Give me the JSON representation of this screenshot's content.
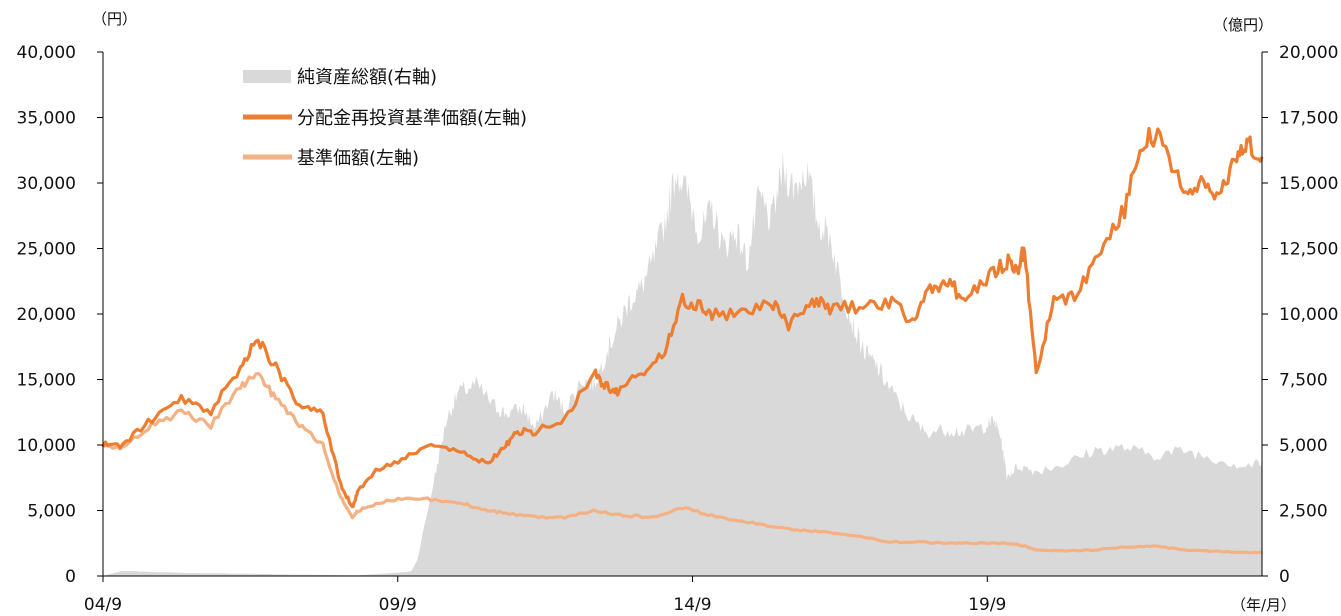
{
  "chart_data": {
    "type": "line",
    "y_left_unit": "（円）",
    "y_right_unit": "（億円）",
    "x_unit": "（年/月）",
    "x_tick_labels": [
      "04/9",
      "09/9",
      "14/9",
      "19/9"
    ],
    "y_left_ticks": [
      "0",
      "5,000",
      "10,000",
      "15,000",
      "20,000",
      "25,000",
      "30,000",
      "35,000",
      "40,000"
    ],
    "y_right_ticks": [
      "0",
      "2,500",
      "5,000",
      "7,500",
      "10,000",
      "12,500",
      "15,000",
      "17,500",
      "20,000"
    ],
    "y_left_range": [
      0,
      40000
    ],
    "y_right_range": [
      0,
      20000
    ],
    "x_range": [
      2004.67,
      2024.33
    ],
    "legend_position": "top-left",
    "grid": false,
    "series": [
      {
        "name": "純資産総額(右軸)",
        "type": "area",
        "axis": "right",
        "color": "#d9d9d9",
        "x": [
          2004.67,
          2005.0,
          2006.0,
          2007.0,
          2008.0,
          2009.0,
          2009.5,
          2009.9,
          2010.0,
          2010.3,
          2010.5,
          2010.7,
          2011.0,
          2011.3,
          2011.5,
          2011.8,
          2012.0,
          2012.3,
          2012.5,
          2012.8,
          2013.0,
          2013.2,
          2013.4,
          2013.6,
          2013.8,
          2014.0,
          2014.2,
          2014.4,
          2014.6,
          2014.8,
          2015.0,
          2015.2,
          2015.4,
          2015.6,
          2015.8,
          2016.0,
          2016.2,
          2016.4,
          2016.6,
          2016.8,
          2017.0,
          2017.2,
          2017.4,
          2017.6,
          2017.8,
          2018.0,
          2018.3,
          2018.6,
          2019.0,
          2019.3,
          2019.6,
          2019.8,
          2019.9,
          2020.0,
          2020.2,
          2020.5,
          2021.0,
          2021.5,
          2022.0,
          2022.5,
          2023.0,
          2023.5,
          2024.0,
          2024.33
        ],
        "values": [
          0,
          200,
          120,
          90,
          50,
          30,
          100,
          180,
          600,
          3800,
          6000,
          7000,
          7300,
          6500,
          6200,
          6400,
          5600,
          7000,
          6300,
          7500,
          7300,
          8500,
          9500,
          10500,
          11000,
          12000,
          13500,
          15500,
          14500,
          13000,
          14000,
          12500,
          13200,
          12000,
          14500,
          13500,
          15500,
          14800,
          15500,
          13500,
          13000,
          11000,
          9500,
          8500,
          8000,
          7200,
          6200,
          5500,
          5600,
          5500,
          5700,
          5900,
          5300,
          3800,
          4200,
          4000,
          4300,
          4800,
          4900,
          4600,
          4800,
          4500,
          4200,
          4300
        ]
      },
      {
        "name": "分配金再投資基準価額(左軸)",
        "type": "line",
        "axis": "left",
        "color": "#ed7d31",
        "x": [
          2004.67,
          2005.0,
          2005.5,
          2006.0,
          2006.5,
          2007.0,
          2007.3,
          2007.6,
          2008.0,
          2008.4,
          2008.7,
          2008.9,
          2009.0,
          2009.3,
          2009.8,
          2010.3,
          2010.8,
          2011.2,
          2011.5,
          2011.7,
          2012.0,
          2012.5,
          2013.0,
          2013.2,
          2013.4,
          2013.8,
          2014.2,
          2014.5,
          2014.8,
          2015.0,
          2015.5,
          2016.0,
          2016.3,
          2016.7,
          2017.0,
          2017.5,
          2018.0,
          2018.4,
          2018.7,
          2019.0,
          2019.3,
          2019.7,
          2020.0,
          2020.2,
          2020.3,
          2020.5,
          2020.8,
          2021.2,
          2021.6,
          2022.0,
          2022.3,
          2022.6,
          2023.0,
          2023.3,
          2023.6,
          2023.9,
          2024.1,
          2024.33
        ],
        "values": [
          10000,
          10000,
          12000,
          13500,
          12500,
          16000,
          18000,
          16000,
          13000,
          12500,
          7000,
          5200,
          6500,
          8000,
          9000,
          10000,
          9500,
          8500,
          10000,
          11000,
          11000,
          12000,
          15500,
          14500,
          14000,
          15500,
          17000,
          21000,
          20500,
          20000,
          20000,
          21000,
          19000,
          21000,
          20500,
          20500,
          21000,
          19500,
          22000,
          22500,
          21000,
          23000,
          24000,
          23500,
          25000,
          15500,
          21000,
          21500,
          25000,
          28000,
          33000,
          34000,
          29000,
          30000,
          29000,
          32000,
          33000,
          32000
        ]
      },
      {
        "name": "基準価額(左軸)",
        "type": "line",
        "axis": "left",
        "color": "#f4b183",
        "x": [
          2004.67,
          2005.0,
          2005.5,
          2006.0,
          2006.5,
          2007.0,
          2007.3,
          2007.6,
          2008.0,
          2008.4,
          2008.7,
          2008.9,
          2009.0,
          2009.3,
          2009.8,
          2010.3,
          2010.8,
          2011.2,
          2011.5,
          2012.0,
          2012.5,
          2013.0,
          2013.5,
          2014.0,
          2014.5,
          2015.0,
          2015.5,
          2016.0,
          2016.5,
          2017.0,
          2017.5,
          2018.0,
          2018.5,
          2019.0,
          2019.5,
          2020.0,
          2020.3,
          2020.5,
          2021.0,
          2021.5,
          2022.0,
          2022.5,
          2023.0,
          2023.5,
          2024.0,
          2024.33
        ],
        "values": [
          10000,
          9800,
          11500,
          12500,
          11500,
          14500,
          15500,
          13500,
          11500,
          10000,
          6000,
          4500,
          5000,
          5500,
          6000,
          5800,
          5500,
          5000,
          4800,
          4500,
          4500,
          5000,
          4600,
          4500,
          5200,
          4600,
          4200,
          3800,
          3500,
          3300,
          3000,
          2600,
          2600,
          2500,
          2500,
          2500,
          2300,
          2000,
          1900,
          2000,
          2200,
          2300,
          2000,
          1900,
          1800,
          1800
        ]
      }
    ]
  }
}
